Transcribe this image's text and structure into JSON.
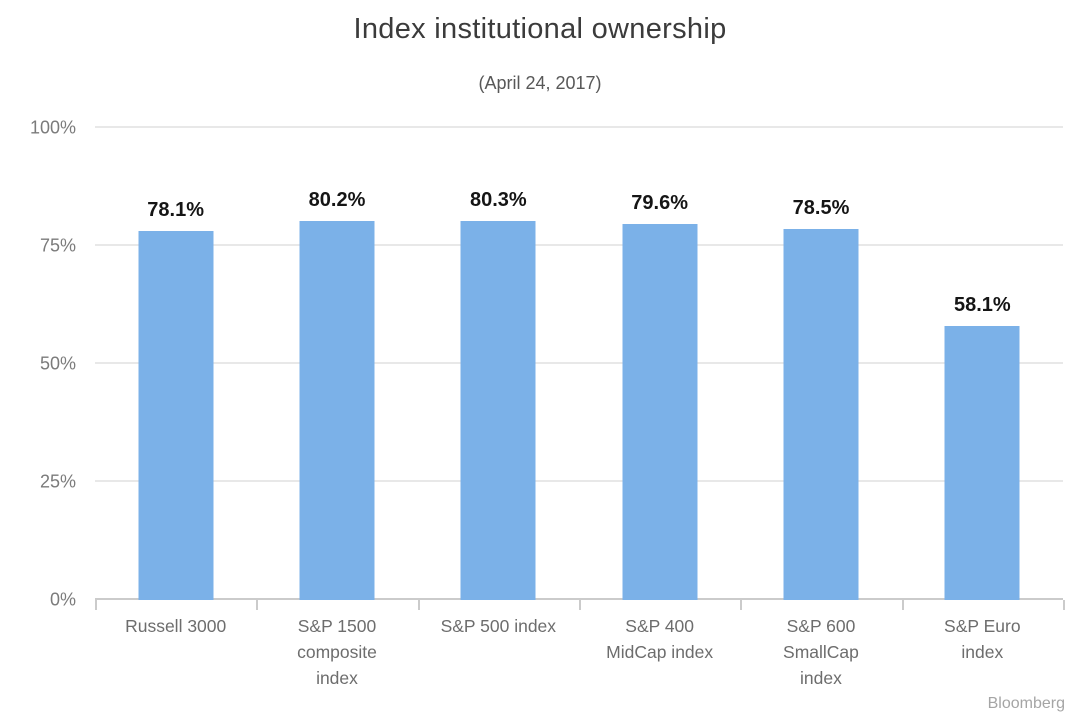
{
  "chart_data": {
    "type": "bar",
    "title": "Index institutional ownership",
    "subtitle": "(April 24, 2017)",
    "categories": [
      "Russell 3000",
      "S&P 1500 composite index",
      "S&P 500 index",
      "S&P 400 MidCap index",
      "S&P 600 SmallCap index",
      "S&P Euro index"
    ],
    "category_label_lines": [
      [
        "Russell 3000"
      ],
      [
        "S&P 1500",
        "composite",
        "index"
      ],
      [
        "S&P 500 index"
      ],
      [
        "S&P 400",
        "MidCap index"
      ],
      [
        "S&P 600",
        "SmallCap",
        "index"
      ],
      [
        "S&P Euro",
        "index"
      ]
    ],
    "values": [
      78.1,
      80.2,
      80.3,
      79.6,
      78.5,
      58.1
    ],
    "value_labels": [
      "78.1%",
      "80.2%",
      "80.3%",
      "79.6%",
      "78.5%",
      "58.1%"
    ],
    "xlabel": "",
    "ylabel": "",
    "ylim": [
      0,
      100
    ],
    "yticks": [
      "0%",
      "25%",
      "50%",
      "75%",
      "100%"
    ],
    "grid": true,
    "legend": "none",
    "bar_color": "#7bb1e8"
  },
  "source": "Bloomberg",
  "colors": {
    "bar": "#7bb1e8",
    "gridline": "#e8e8e8",
    "axis": "#cbcbcb",
    "title_text": "#3b3b3b",
    "value_text": "#151515",
    "tick_text": "#7b7b7b",
    "source_text": "#a5a5a5"
  }
}
